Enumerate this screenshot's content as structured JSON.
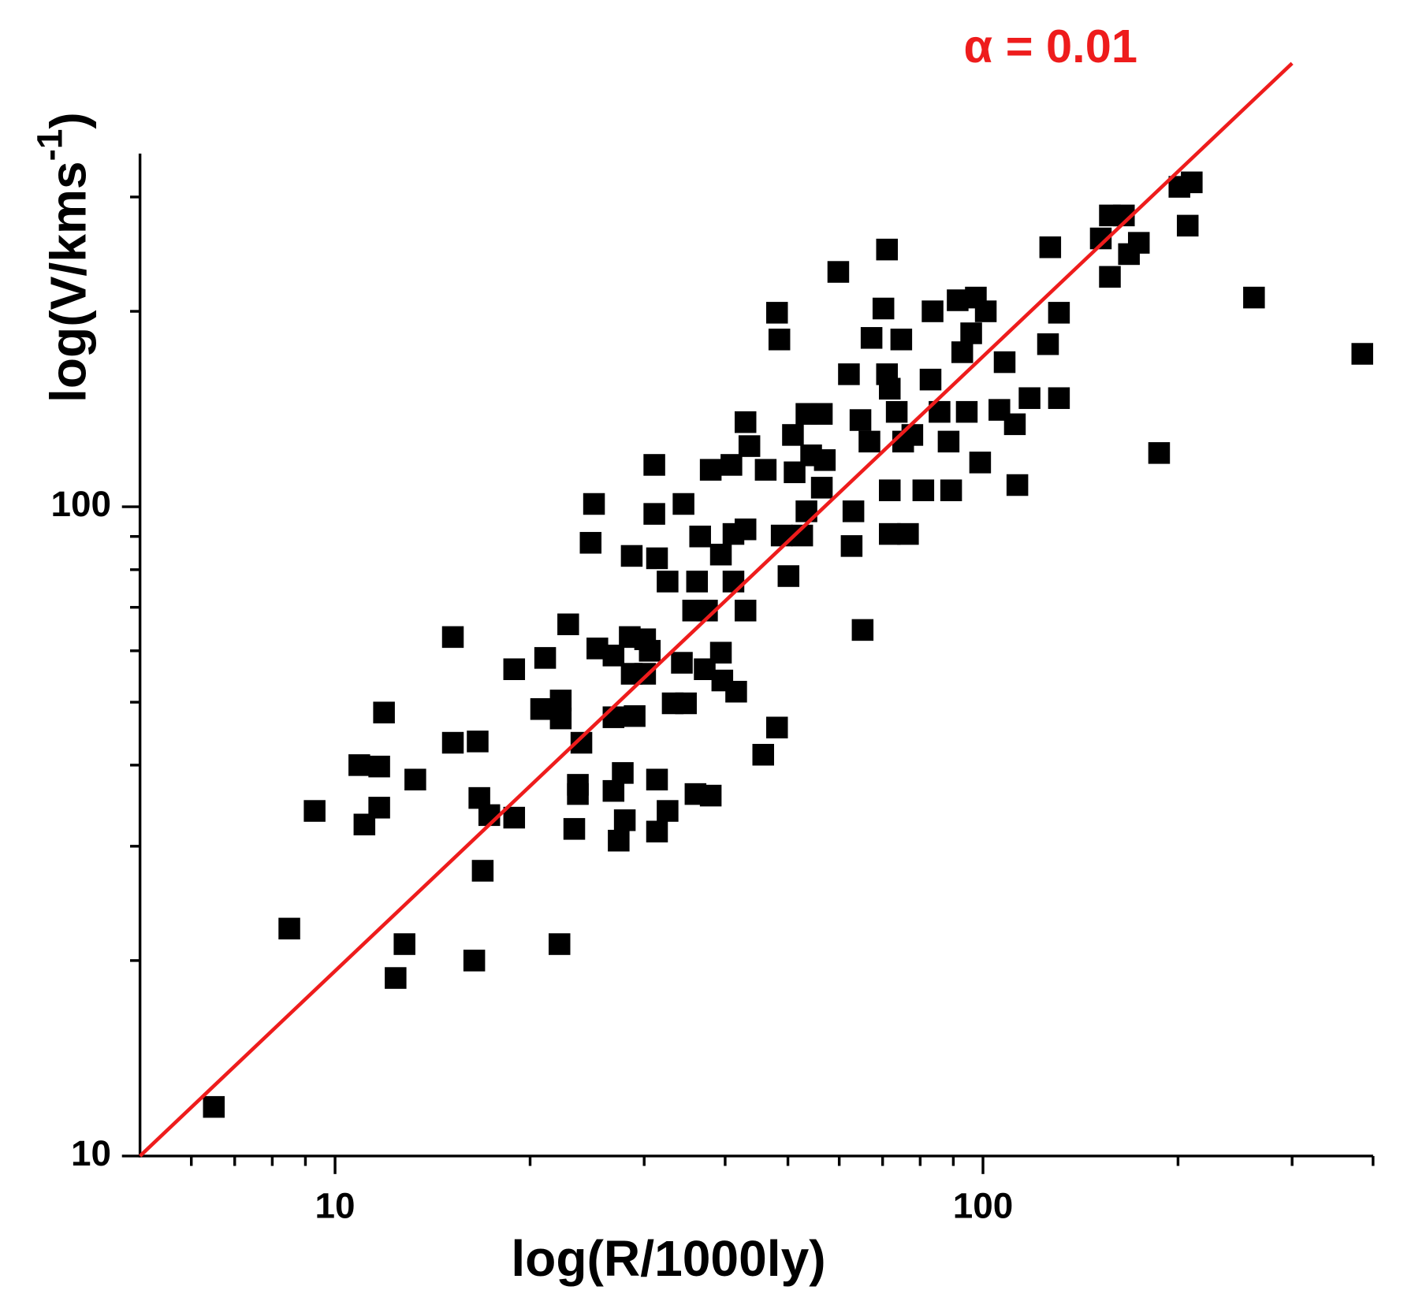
{
  "chart_data": {
    "type": "scatter",
    "x_label": "log(R/1000ly)",
    "y_label_parts": [
      "log(V/kms",
      "-1",
      ")"
    ],
    "log_x": true,
    "log_y": true,
    "xlim": [
      5,
      400
    ],
    "ylim": [
      10,
      350
    ],
    "xticks": [
      10,
      100
    ],
    "yticks": [
      10,
      100
    ],
    "xminorticks": [
      6,
      7,
      8,
      9,
      20,
      30,
      40,
      50,
      60,
      70,
      80,
      90,
      200,
      300,
      400
    ],
    "yminorticks": [
      20,
      30,
      40,
      50,
      60,
      70,
      80,
      90,
      200,
      300
    ],
    "color": "#000000",
    "x": [
      6.5,
      8.5,
      9.3,
      11.1,
      10.9,
      11.7,
      11.7,
      11.9,
      13.3,
      12.8,
      12.4,
      15.2,
      15.2,
      16.6,
      16.7,
      17.3,
      16.9,
      16.4,
      18.9,
      18.9,
      21.1,
      20.8,
      22.3,
      22.3,
      22.2,
      22.9,
      24.0,
      23.7,
      23.7,
      23.4,
      25.1,
      24.8,
      25.4,
      26.9,
      26.9,
      26.9,
      27.4,
      27.8,
      28,
      28.7,
      28.5,
      28.7,
      29,
      30.1,
      30.6,
      30.1,
      31.1,
      31.1,
      31.4,
      31.4,
      31.4,
      32.6,
      32.6,
      33.2,
      34.3,
      34.8,
      34.5,
      35.7,
      36.2,
      36.6,
      36,
      38,
      37.2,
      38,
      37.5,
      39.4,
      39.4,
      39.6,
      41.2,
      41.2,
      41.6,
      40.9,
      43,
      43,
      43,
      43.6,
      46.2,
      45.8,
      48.1,
      48.5,
      48.1,
      48.9,
      50.1,
      50.9,
      51.2,
      52.6,
      53.4,
      54.3,
      53.4,
      56.4,
      57,
      56.4,
      59.8,
      62.1,
      63.1,
      62.7,
      65.2,
      64.7,
      66.8,
      67.3,
      70.2,
      71.1,
      71.1,
      71.8,
      71.8,
      71.8,
      73.6,
      74.8,
      75.3,
      76.6,
      77.8,
      80.9,
      83,
      83.6,
      85.7,
      88.5,
      89.3,
      91.4,
      92.9,
      94.4,
      95.9,
      97.5,
      101,
      99,
      108,
      106,
      112,
      113,
      118,
      126,
      127,
      131,
      131,
      152,
      157,
      157,
      165,
      168,
      174,
      187,
      201,
      210,
      207,
      262,
      385
    ],
    "y": [
      11.9,
      22.4,
      34,
      32.4,
      40,
      39.8,
      34.4,
      48.2,
      38,
      21.2,
      18.8,
      63,
      43.3,
      43.5,
      35.6,
      33.5,
      27.5,
      20,
      33.2,
      56.2,
      58.5,
      48.8,
      50.3,
      47.2,
      21.2,
      65.9,
      43.3,
      37.3,
      36.1,
      31.9,
      101,
      88,
      60.5,
      59,
      47.4,
      36.5,
      30.6,
      38.9,
      32.9,
      84,
      63,
      55.3,
      47.6,
      62.5,
      60,
      55.3,
      116,
      97.5,
      83.3,
      38,
      31.6,
      76.7,
      34,
      49.8,
      57.5,
      49.8,
      101,
      69.2,
      76.7,
      90,
      36.1,
      35.9,
      56.2,
      114,
      69.2,
      59.6,
      84.4,
      54,
      90.8,
      76.7,
      51.9,
      116,
      92.3,
      69.2,
      135,
      124,
      114,
      41.5,
      199,
      181,
      45.7,
      90.3,
      78.2,
      129,
      113,
      90.3,
      139,
      120,
      98.4,
      139,
      118,
      107,
      230,
      160,
      98.4,
      87,
      64.6,
      136,
      126,
      182,
      202,
      249,
      160,
      152,
      106,
      90.8,
      140,
      181,
      126,
      90.8,
      129,
      106,
      157,
      200,
      140,
      126,
      106,
      208,
      173,
      140,
      185,
      210,
      200,
      117,
      167,
      141,
      134,
      108,
      147,
      178,
      251,
      199,
      147,
      259,
      226,
      281,
      281,
      245,
      255,
      121,
      311,
      316,
      271,
      210,
      172
    ],
    "fit": {
      "type": "line",
      "label": "α = 0.01",
      "color": "#ee1c1c",
      "x": [
        5,
        300
      ],
      "y": [
        10,
        482
      ]
    }
  }
}
